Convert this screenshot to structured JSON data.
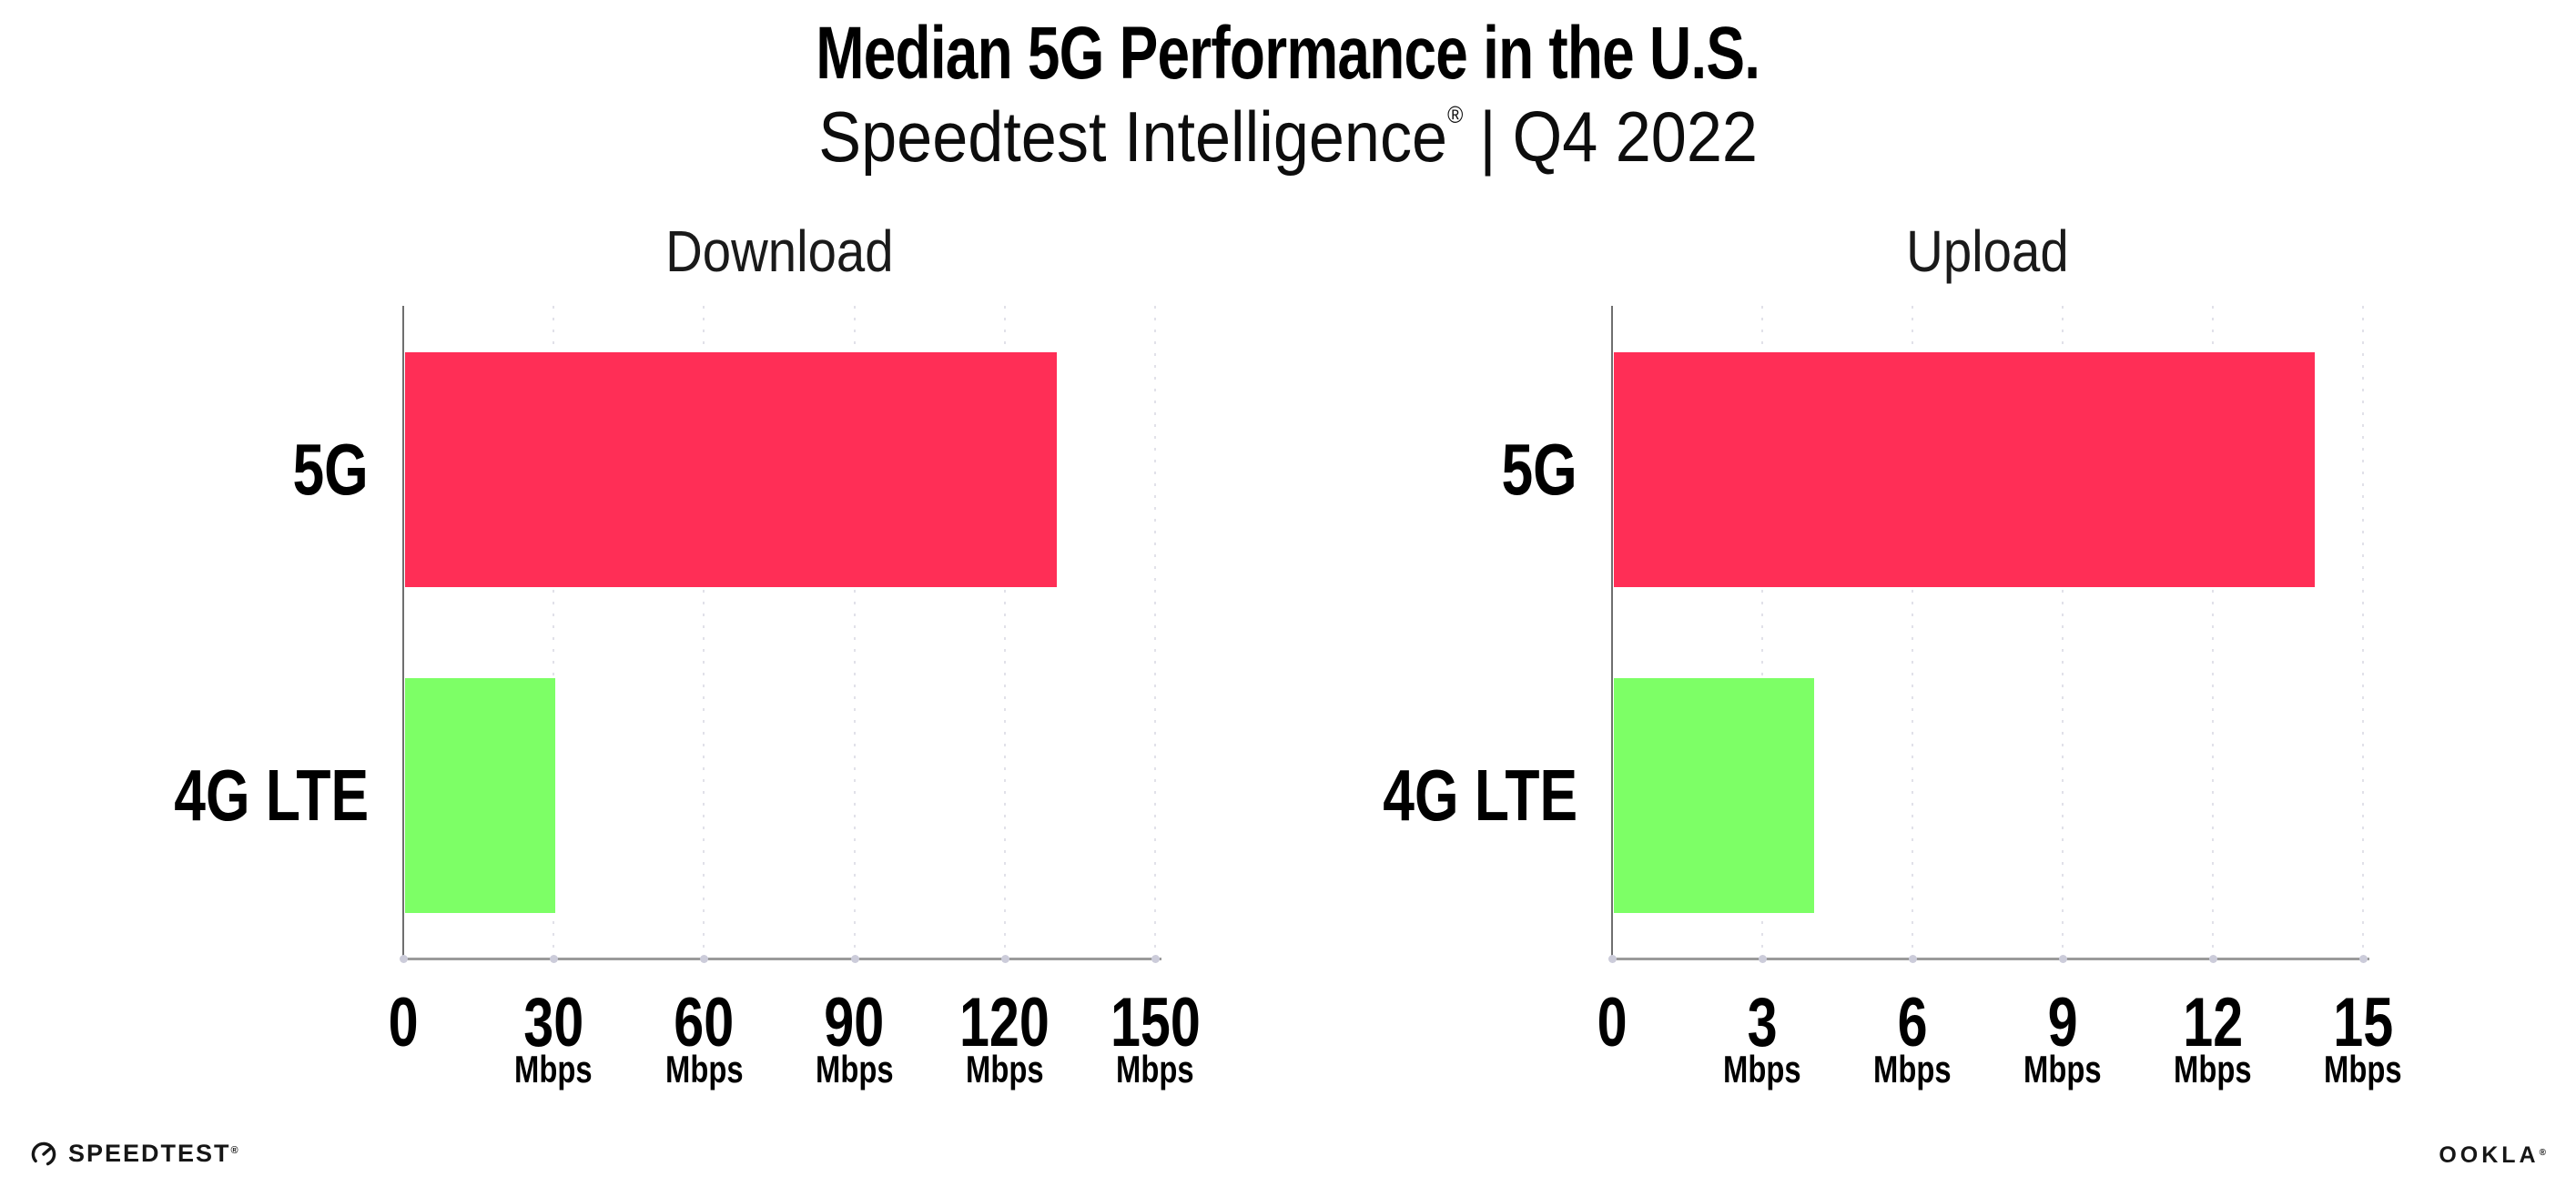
{
  "header": {
    "title": "Median 5G Performance in the U.S.",
    "subtitle_brand": "Speedtest Intelligence",
    "subtitle_reg": "®",
    "subtitle_separator": "|",
    "subtitle_period": "Q4 2022"
  },
  "chart_data": {
    "type": "bar",
    "orientation": "horizontal",
    "unit": "Mbps",
    "grid": "dotted-vertical",
    "colors": {
      "5G": "#ff2e56",
      "4G LTE": "#7dff66"
    },
    "charts": [
      {
        "title": "Download",
        "categories": [
          "5G",
          "4G LTE"
        ],
        "values": [
          130,
          30
        ],
        "xlim": [
          0,
          150
        ],
        "ticks": [
          0,
          30,
          60,
          90,
          120,
          150
        ],
        "tick_unit": "Mbps"
      },
      {
        "title": "Upload",
        "categories": [
          "5G",
          "4G LTE"
        ],
        "values": [
          14,
          4
        ],
        "xlim": [
          0,
          15
        ],
        "ticks": [
          0,
          3,
          6,
          9,
          12,
          15
        ],
        "tick_unit": "Mbps"
      }
    ]
  },
  "footer": {
    "speedtest_label": "SPEEDTEST",
    "speedtest_reg": "®",
    "ookla_label": "OOKLA",
    "ookla_reg": "®"
  }
}
